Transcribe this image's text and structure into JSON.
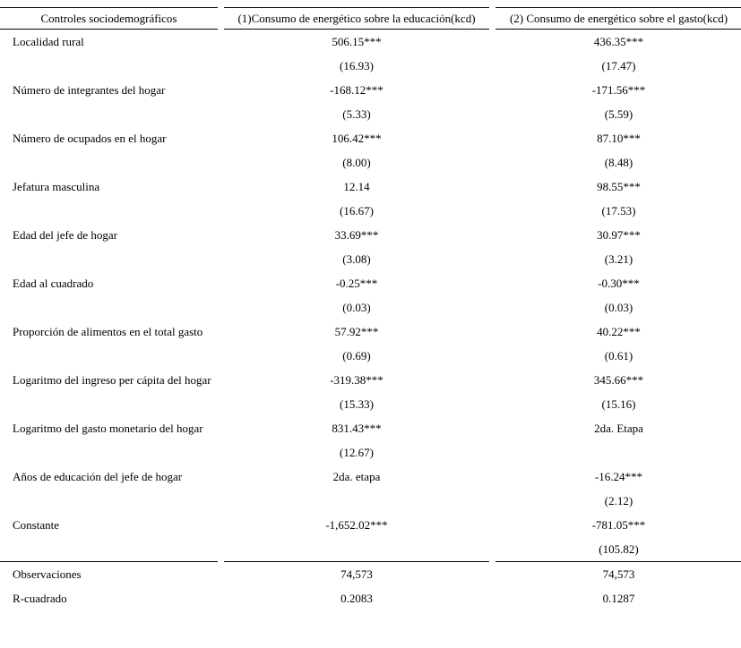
{
  "table": {
    "headers": [
      "Controles sociodemográficos",
      "(1)Consumo de energético sobre la educación(kcd)",
      "(2) Consumo de energético sobre el gasto(kcd)"
    ],
    "rows": [
      {
        "label": "Localidad rural",
        "c1": "506.15***",
        "c2": "436.35***"
      },
      {
        "label": "",
        "c1": "(16.93)",
        "c2": "(17.47)"
      },
      {
        "label": "Número de integrantes del hogar",
        "c1": "-168.12***",
        "c2": "-171.56***"
      },
      {
        "label": "",
        "c1": "(5.33)",
        "c2": "(5.59)"
      },
      {
        "label": "Número de ocupados en el hogar",
        "c1": "106.42***",
        "c2": "87.10***"
      },
      {
        "label": "",
        "c1": "(8.00)",
        "c2": "(8.48)"
      },
      {
        "label": "Jefatura masculina",
        "c1": "12.14",
        "c2": "98.55***"
      },
      {
        "label": "",
        "c1": "(16.67)",
        "c2": "(17.53)"
      },
      {
        "label": "Edad del jefe de hogar",
        "c1": "33.69***",
        "c2": "30.97***"
      },
      {
        "label": "",
        "c1": "(3.08)",
        "c2": "(3.21)"
      },
      {
        "label": "Edad al cuadrado",
        "c1": "-0.25***",
        "c2": "-0.30***"
      },
      {
        "label": "",
        "c1": "(0.03)",
        "c2": "(0.03)"
      },
      {
        "label": "Proporción de alimentos en el total gasto",
        "c1": "57.92***",
        "c2": "40.22***"
      },
      {
        "label": "",
        "c1": "(0.69)",
        "c2": "(0.61)"
      },
      {
        "label": "Logaritmo del ingreso per cápita del hogar",
        "c1": "-319.38***",
        "c2": "345.66***"
      },
      {
        "label": "",
        "c1": "(15.33)",
        "c2": "(15.16)"
      },
      {
        "label": "Logaritmo del gasto monetario del hogar",
        "c1": "831.43***",
        "c2": "2da. Etapa"
      },
      {
        "label": "",
        "c1": "(12.67)",
        "c2": ""
      },
      {
        "label": "Años de educación del jefe de hogar",
        "c1": "2da. etapa",
        "c2": "-16.24***"
      },
      {
        "label": "",
        "c1": "",
        "c2": "(2.12)"
      },
      {
        "label": "Constante",
        "c1": "-1,652.02***",
        "c2": "-781.05***"
      },
      {
        "label": "",
        "c1": "",
        "c2": "(105.82)"
      }
    ],
    "stats": [
      {
        "label": "Observaciones",
        "c1": "74,573",
        "c2": "74,573"
      },
      {
        "label": "R-cuadrado",
        "c1": "0.2083",
        "c2": "0.1287"
      }
    ]
  }
}
